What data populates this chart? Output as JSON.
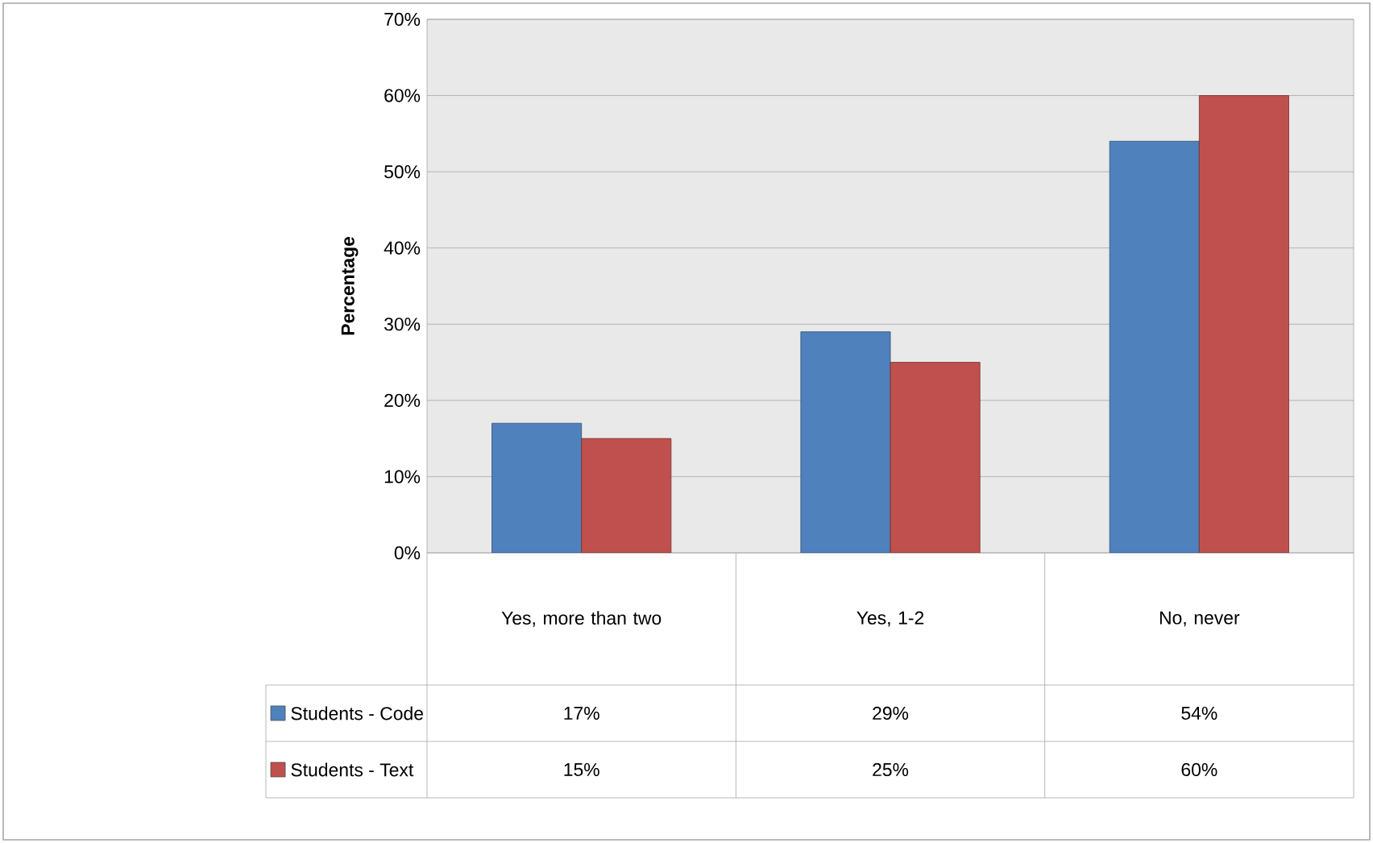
{
  "chart_data": {
    "type": "bar",
    "ylabel": "Percentage",
    "categories": [
      "Yes, more than two",
      "Yes, 1-2",
      "No, never"
    ],
    "series": [
      {
        "name": "Students - Code",
        "color": "#4f81bd",
        "values": [
          17,
          29,
          54
        ],
        "value_labels": [
          "17%",
          "29%",
          "54%"
        ]
      },
      {
        "name": "Students - Text",
        "color": "#c0504d",
        "values": [
          15,
          25,
          60
        ],
        "value_labels": [
          "15%",
          "25%",
          "60%"
        ]
      }
    ],
    "ylim": [
      0,
      70
    ],
    "yticks": [
      {
        "value": 0,
        "label": "0%"
      },
      {
        "value": 10,
        "label": "10%"
      },
      {
        "value": 20,
        "label": "20%"
      },
      {
        "value": 30,
        "label": "30%"
      },
      {
        "value": 40,
        "label": "40%"
      },
      {
        "value": 50,
        "label": "50%"
      },
      {
        "value": 60,
        "label": "60%"
      },
      {
        "value": 70,
        "label": "70%"
      }
    ],
    "grid": "y",
    "legend": "bottom"
  }
}
